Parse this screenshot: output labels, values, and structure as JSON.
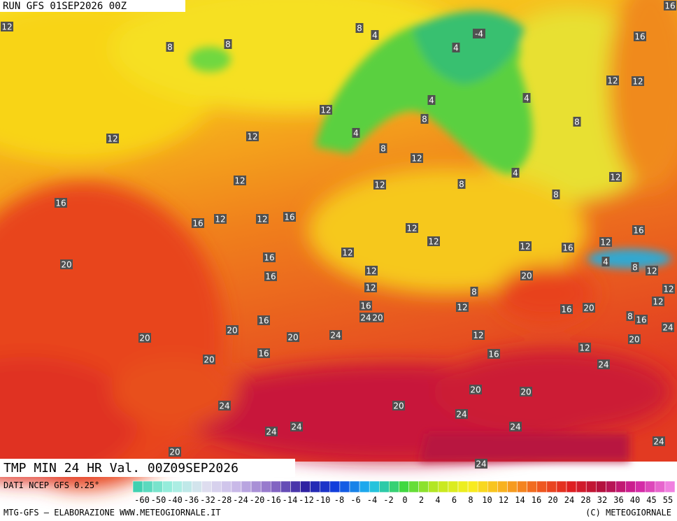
{
  "header": {
    "run": "RUN GFS 01SEP2026 00Z"
  },
  "footer": {
    "title": "TMP MIN 24 HR Val. 00Z09SEP2026",
    "source": "DATI NCEP GFS 0.25°",
    "credit": "MTG-GFS — ELABORAZIONE WWW.METEOGIORNALE.IT",
    "copyright": "(C) METEOGIORNALE"
  },
  "legend": {
    "ticks": [
      -60,
      -50,
      -40,
      -36,
      -32,
      -28,
      -24,
      -20,
      -16,
      -14,
      -12,
      -10,
      -8,
      -6,
      -4,
      -2,
      0,
      2,
      4,
      6,
      8,
      10,
      12,
      14,
      16,
      20,
      24,
      28,
      32,
      36,
      40,
      45,
      55
    ]
  },
  "map_labels": [
    12,
    8,
    4,
    -4,
    16,
    8,
    8,
    4,
    12,
    12,
    4,
    4,
    12,
    8,
    8,
    12,
    12,
    4,
    8,
    12,
    4,
    12,
    12,
    12,
    8,
    8,
    16,
    16,
    12,
    12,
    16,
    12,
    16,
    12,
    12,
    16,
    12,
    12,
    16,
    4,
    8,
    12,
    20,
    16,
    12,
    20,
    12,
    8,
    12,
    12,
    16,
    12,
    16,
    20,
    8,
    16,
    16,
    24,
    20,
    24,
    20,
    12,
    20,
    20,
    24,
    20,
    12,
    16,
    16,
    20,
    24,
    20,
    20,
    24,
    20,
    24,
    24,
    24,
    24,
    24,
    20,
    24,
    16
  ]
}
